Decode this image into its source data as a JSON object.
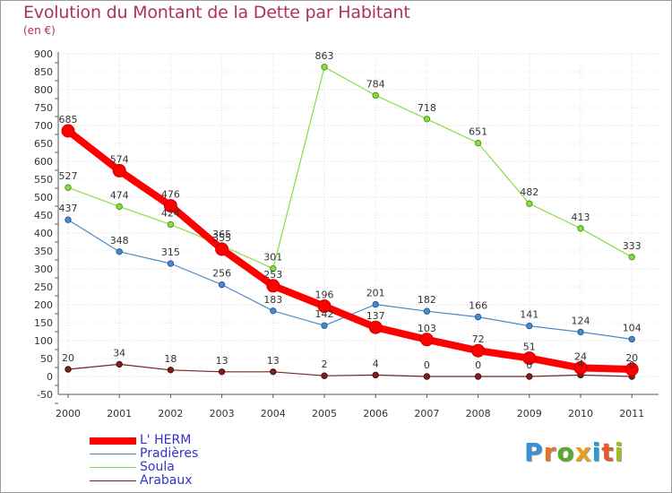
{
  "title": "Evolution du Montant de la Dette par Habitant",
  "subtitle": "(en €)",
  "logo": {
    "letters": [
      "P",
      "r",
      "o",
      "x",
      "i",
      "t",
      "i"
    ],
    "colors": [
      "#3a8fd6",
      "#e8702a",
      "#5aaa2a",
      "#e8a020",
      "#2a9ad6",
      "#e85a2a",
      "#a0c020"
    ]
  },
  "chart_data": {
    "type": "line",
    "x": [
      "2000",
      "2001",
      "2002",
      "2003",
      "2004",
      "2005",
      "2006",
      "2007",
      "2008",
      "2009",
      "2010",
      "2011"
    ],
    "ylim": [
      -50,
      900
    ],
    "yticks": [
      "-50",
      "0",
      "50",
      "100",
      "150",
      "200",
      "250",
      "300",
      "350",
      "400",
      "450",
      "500",
      "550",
      "600",
      "650",
      "700",
      "750",
      "800",
      "850",
      "900"
    ],
    "grid": true,
    "legend_position": "bottom-left",
    "series": [
      {
        "name": "L' HERM",
        "color": "#ff0000",
        "values": [
          685,
          574,
          476,
          355,
          253,
          196,
          137,
          103,
          72,
          51,
          24,
          20
        ],
        "labels": [
          "685",
          "574",
          "476",
          "355",
          "253",
          "196",
          "137",
          "103",
          "72",
          "51",
          "24",
          "20"
        ]
      },
      {
        "name": "Pradières",
        "color": "#4a8ac8",
        "values": [
          437,
          348,
          315,
          256,
          183,
          142,
          201,
          182,
          166,
          141,
          124,
          104
        ],
        "labels": [
          "437",
          "348",
          "315",
          "256",
          "183",
          "142",
          "201",
          "182",
          "166",
          "141",
          "124",
          "104"
        ]
      },
      {
        "name": "Soula",
        "color": "#88dd44",
        "values": [
          527,
          474,
          424,
          365,
          301,
          863,
          784,
          718,
          651,
          482,
          413,
          333
        ],
        "labels": [
          "527",
          "474",
          "424",
          "365",
          "301",
          "863",
          "784",
          "718",
          "651",
          "482",
          "413",
          "333"
        ]
      },
      {
        "name": "Arabaux",
        "color": "#7a2020",
        "values": [
          20,
          34,
          18,
          13,
          13,
          2,
          4,
          0,
          0,
          0,
          4,
          0
        ],
        "labels": [
          "20",
          "34",
          "18",
          "13",
          "13",
          "2",
          "4",
          "0",
          "0",
          "0",
          "4",
          "0"
        ]
      }
    ]
  }
}
